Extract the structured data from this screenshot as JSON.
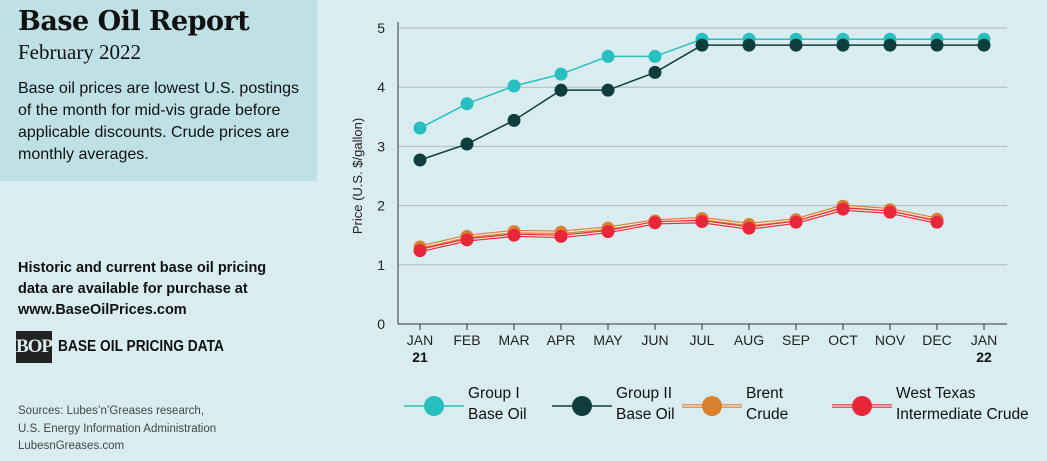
{
  "header": {
    "title": "Base Oil Report",
    "subtitle": "February 2022",
    "description": "Base oil prices are lowest U.S. postings of the month for mid-vis grade before applicable discounts. Crude prices are monthly averages."
  },
  "purchase": {
    "line1": "Historic and current base oil pricing",
    "line2": "data are available for purchase at",
    "line3": "www.BaseOilPrices.com"
  },
  "brand": {
    "logo": "BOP",
    "name": "BASE OIL PRICING DATA"
  },
  "sources": {
    "line1": "Sources: Lubes’n’Greases research,",
    "line2": "U.S. Energy Information Administration",
    "website": "LubesnGreases.com"
  },
  "colors": {
    "background": "#d9edf1",
    "info_box": "#bfe1e6",
    "group1": "#27bfc0",
    "group2": "#0e3d3b",
    "brent": "#d9812f",
    "wti": "#e8283a"
  },
  "chart_data": {
    "type": "line",
    "title": "",
    "xlabel": "",
    "ylabel": "Price (U.S. $/gallon)",
    "ylim": [
      0,
      5
    ],
    "yticks": [
      0,
      1,
      2,
      3,
      4,
      5
    ],
    "grid": "horizontal",
    "categories": [
      "JAN",
      "FEB",
      "MAR",
      "APR",
      "MAY",
      "JUN",
      "JUL",
      "AUG",
      "SEP",
      "OCT",
      "NOV",
      "DEC",
      "JAN"
    ],
    "year_labels": {
      "0": "21",
      "12": "22"
    },
    "series": [
      {
        "name": "Group I Base Oil",
        "legend_lines": [
          "Group I",
          "Base Oil"
        ],
        "color": "#27bfc0",
        "values": [
          3.31,
          3.72,
          4.02,
          4.22,
          4.52,
          4.52,
          4.81,
          4.81,
          4.81,
          4.81,
          4.81,
          4.81,
          4.81
        ]
      },
      {
        "name": "Group II Base Oil",
        "legend_lines": [
          "Group II",
          "Base Oil"
        ],
        "color": "#0e3d3b",
        "values": [
          2.77,
          3.04,
          3.44,
          3.95,
          3.95,
          4.25,
          4.71,
          4.71,
          4.71,
          4.71,
          4.71,
          4.71,
          4.71
        ]
      },
      {
        "name": "Brent Crude",
        "legend_lines": [
          "Brent",
          "Crude"
        ],
        "color": "#d9812f",
        "values": [
          1.3,
          1.48,
          1.56,
          1.55,
          1.62,
          1.74,
          1.78,
          1.68,
          1.76,
          1.99,
          1.93,
          1.77,
          null
        ]
      },
      {
        "name": "West Texas Intermediate Crude",
        "legend_lines": [
          "West Texas",
          "Intermediate Crude"
        ],
        "color": "#e8283a",
        "values": [
          1.24,
          1.42,
          1.5,
          1.48,
          1.56,
          1.71,
          1.73,
          1.62,
          1.72,
          1.94,
          1.89,
          1.72,
          null
        ]
      }
    ]
  }
}
